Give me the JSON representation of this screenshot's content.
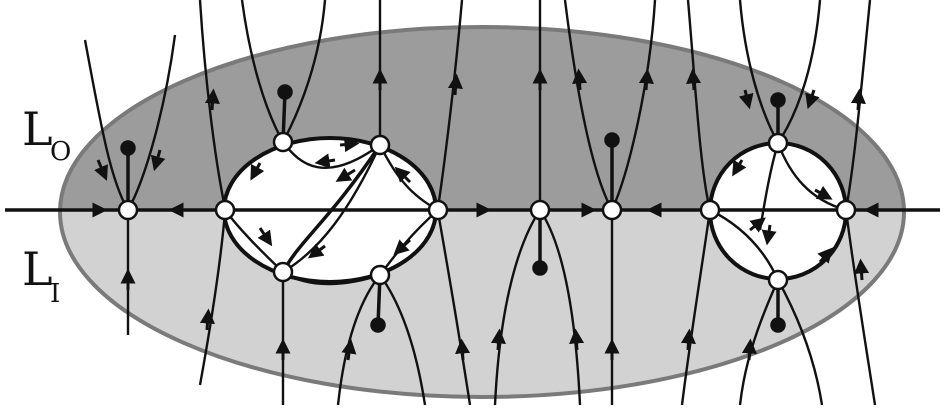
{
  "labels": {
    "outer_main": "L",
    "outer_sub": "O",
    "inner_main": "L",
    "inner_sub": "I"
  },
  "colors": {
    "outer_region": "#9c9c9c",
    "inner_region": "#d2d2d2",
    "ellipse_border": "#7a7a7a",
    "lines": "#111111",
    "vertex_fill": "#ffffff",
    "hole_fill": "#ffffff"
  }
}
